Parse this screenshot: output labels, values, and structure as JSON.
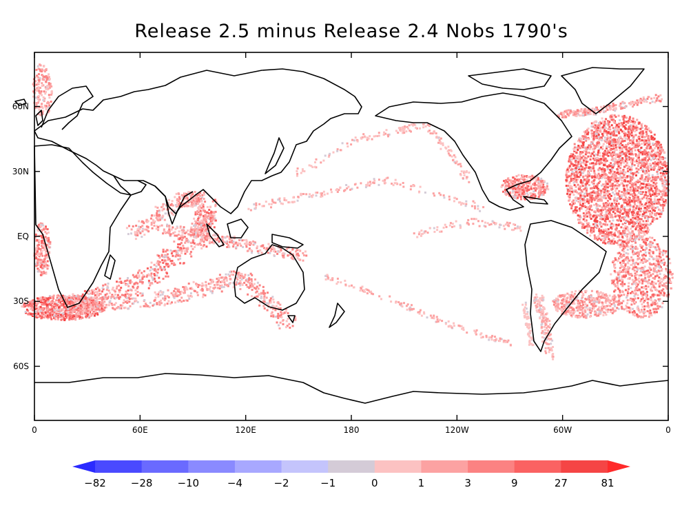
{
  "title": "Release 2.5 minus Release 2.4  Nobs 1790's",
  "map": {
    "projection": "cylindrical equidistant, centered 180",
    "lon_labels": [
      "0",
      "60E",
      "120E",
      "180",
      "120W",
      "60W",
      "0"
    ],
    "lat_labels": [
      "60N",
      "30N",
      "EQ",
      "30S",
      "60S"
    ],
    "coastline_color": "#000000"
  },
  "colorbar": {
    "labels": [
      "-82",
      "-28",
      "-10",
      "-4",
      "-2",
      "-1",
      "0",
      "1",
      "3",
      "9",
      "27",
      "81"
    ],
    "colors": [
      "#2a2aff",
      "#4a4aff",
      "#6a6aff",
      "#8a8aff",
      "#a8a8ff",
      "#c4c4fc",
      "#d4cbd7",
      "#fcc2c2",
      "#fca2a2",
      "#fb8282",
      "#fa6262",
      "#f54545",
      "#ff2a2a"
    ]
  }
}
